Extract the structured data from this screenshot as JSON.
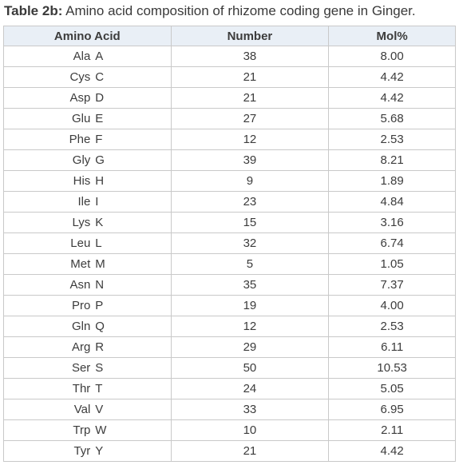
{
  "caption": {
    "label": "Table 2b:",
    "text": " Amino acid composition of rhizome coding gene in Ginger."
  },
  "table": {
    "headers": [
      "Amino Acid",
      "Number",
      "Mol%"
    ],
    "rows": [
      {
        "name": "Ala",
        "code": "A",
        "number": "38",
        "mol": "8.00"
      },
      {
        "name": "Cys",
        "code": "C",
        "number": "21",
        "mol": "4.42"
      },
      {
        "name": "Asp",
        "code": "D",
        "number": "21",
        "mol": "4.42"
      },
      {
        "name": "Glu",
        "code": "E",
        "number": "27",
        "mol": "5.68"
      },
      {
        "name": "Phe",
        "code": "F",
        "number": "12",
        "mol": "2.53"
      },
      {
        "name": "Gly",
        "code": "G",
        "number": "39",
        "mol": "8.21"
      },
      {
        "name": "His",
        "code": "H",
        "number": "9",
        "mol": "1.89"
      },
      {
        "name": "Ile",
        "code": "I",
        "number": "23",
        "mol": "4.84"
      },
      {
        "name": "Lys",
        "code": "K",
        "number": "15",
        "mol": "3.16"
      },
      {
        "name": "Leu",
        "code": "L",
        "number": "32",
        "mol": "6.74"
      },
      {
        "name": "Met",
        "code": "M",
        "number": "5",
        "mol": "1.05"
      },
      {
        "name": "Asn",
        "code": "N",
        "number": "35",
        "mol": "7.37"
      },
      {
        "name": "Pro",
        "code": "P",
        "number": "19",
        "mol": "4.00"
      },
      {
        "name": "Gln",
        "code": "Q",
        "number": "12",
        "mol": "2.53"
      },
      {
        "name": "Arg",
        "code": "R",
        "number": "29",
        "mol": "6.11"
      },
      {
        "name": "Ser",
        "code": "S",
        "number": "50",
        "mol": "10.53"
      },
      {
        "name": "Thr",
        "code": "T",
        "number": "24",
        "mol": "5.05"
      },
      {
        "name": "Val",
        "code": "V",
        "number": "33",
        "mol": "6.95"
      },
      {
        "name": "Trp",
        "code": "W",
        "number": "10",
        "mol": "2.11"
      },
      {
        "name": "Tyr",
        "code": "Y",
        "number": "21",
        "mol": "4.42"
      }
    ]
  }
}
